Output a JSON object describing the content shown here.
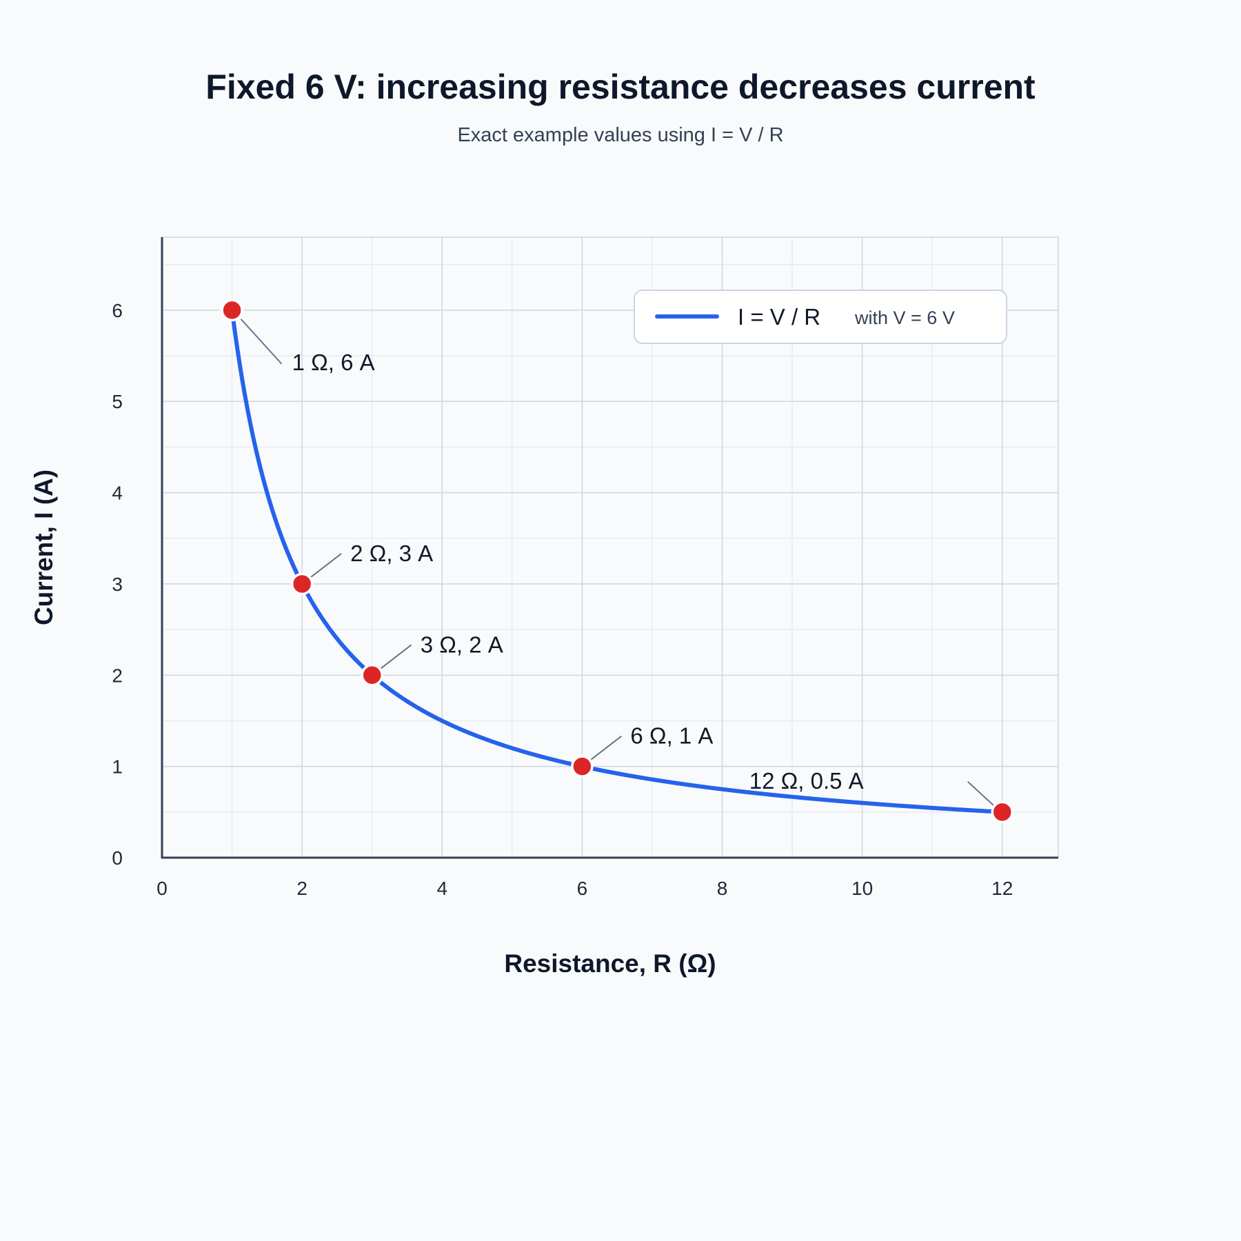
{
  "chart_data": {
    "type": "line",
    "title": "Fixed 6 V: increasing resistance decreases current",
    "subtitle": "Exact example values using I = V / R",
    "xlabel": "Resistance, R (Ω)",
    "ylabel": "Current, I (A)",
    "xlim": [
      0,
      12.8
    ],
    "ylim": [
      0,
      6.8
    ],
    "xticks": [
      0,
      2,
      4,
      6,
      8,
      10,
      12
    ],
    "yticks": [
      0,
      1,
      2,
      3,
      4,
      5,
      6
    ],
    "grid": true,
    "legend_position": "top-right",
    "series": [
      {
        "name": "I = V / R",
        "legend_note": "with V = 6 V",
        "color": "#2563eb",
        "curve": "6 / R",
        "x_range": [
          1,
          12
        ]
      }
    ],
    "points": {
      "color": "#dc2626",
      "x": [
        1,
        2,
        3,
        6,
        12
      ],
      "y": [
        6,
        3,
        2,
        1,
        0.5
      ],
      "labels": [
        "1 Ω, 6 A",
        "2 Ω, 3 A",
        "3 Ω, 2 A",
        "6 Ω, 1 A",
        "12 Ω, 0.5 A"
      ]
    }
  }
}
